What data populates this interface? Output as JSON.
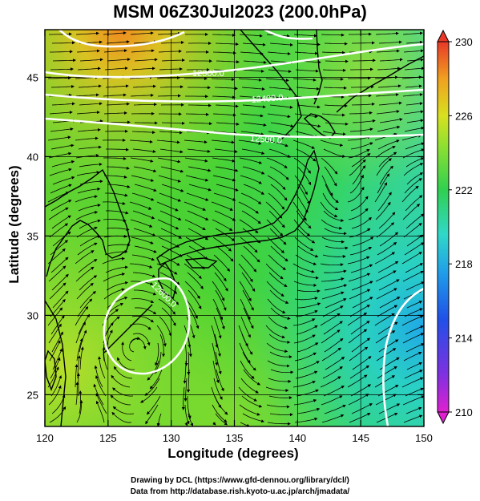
{
  "title": "MSM 06Z30Jul2023 (200.0hPa)",
  "xlabel": "Longitude (degrees)",
  "ylabel": "Latitude  (degrees)",
  "footer": {
    "line1": "Drawing by DCL (https://www.gfd-dennou.org/library/dcl/)",
    "line2": "Data from http://database.rish.kyoto-u.ac.jp/arch/jmadata/"
  },
  "map": {
    "lon_range": [
      120,
      150
    ],
    "lat_range": [
      23,
      48
    ],
    "x_ticks": [
      "120",
      "125",
      "130",
      "135",
      "140",
      "145",
      "150"
    ],
    "y_ticks": [
      "25",
      "30",
      "35",
      "40",
      "45"
    ]
  },
  "contours": {
    "labels": [
      "12300.0",
      "12400.0",
      "12500.0",
      "12600.0"
    ]
  },
  "colorbar": {
    "min": 210,
    "max": 230,
    "tick_labels": [
      "230",
      "226",
      "222",
      "218",
      "214",
      "210"
    ],
    "colors": {
      "top": "#e83828",
      "upper": "#f0a020",
      "mid_upper": "#d8e020",
      "mid": "#30d030",
      "mid_lower": "#30d8c8",
      "lower": "#2050e8",
      "bottom": "#e020d0"
    }
  }
}
